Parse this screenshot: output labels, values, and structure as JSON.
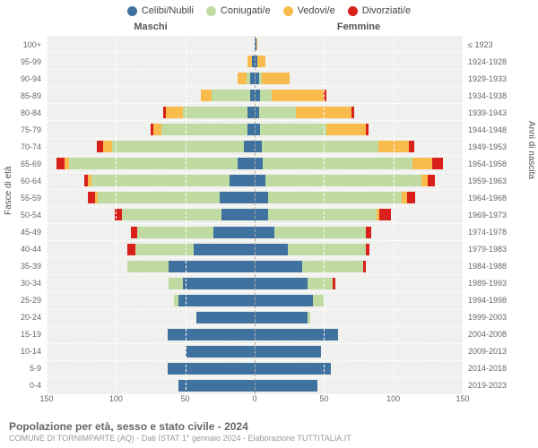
{
  "chart": {
    "type": "population-pyramid",
    "background_color": "#f0f0ee",
    "grid_color": "#ffffff",
    "center_line_color": "#aaaaaa",
    "legend": [
      {
        "label": "Celibi/Nubili",
        "color": "#3f729e"
      },
      {
        "label": "Coniugati/e",
        "color": "#c0dba2"
      },
      {
        "label": "Vedovi/e",
        "color": "#f9bc4c"
      },
      {
        "label": "Divorziati/e",
        "color": "#d9201a"
      }
    ],
    "gender_left_label": "Maschi",
    "gender_right_label": "Femmine",
    "y_title_left": "Fasce di età",
    "y_title_right": "Anni di nascita",
    "x_ticks": [
      -150,
      -100,
      -50,
      0,
      50,
      100,
      150
    ],
    "x_max": 150,
    "age_groups": [
      "100+",
      "95-99",
      "90-94",
      "85-89",
      "80-84",
      "75-79",
      "70-74",
      "65-69",
      "60-64",
      "55-59",
      "50-54",
      "45-49",
      "40-44",
      "35-39",
      "30-34",
      "25-29",
      "20-24",
      "15-19",
      "10-14",
      "5-9",
      "0-4"
    ],
    "birth_years": [
      "≤ 1923",
      "1924-1928",
      "1929-1933",
      "1934-1938",
      "1939-1943",
      "1944-1948",
      "1949-1953",
      "1954-1958",
      "1959-1963",
      "1964-1968",
      "1969-1973",
      "1974-1978",
      "1979-1983",
      "1984-1988",
      "1989-1993",
      "1994-1998",
      "1999-2003",
      "2004-2008",
      "2009-2013",
      "2014-2018",
      "2019-2023"
    ],
    "males": [
      {
        "cel": 0,
        "con": 0,
        "ved": 0,
        "div": 0
      },
      {
        "cel": 2,
        "con": 0,
        "ved": 3,
        "div": 0
      },
      {
        "cel": 3,
        "con": 3,
        "ved": 6,
        "div": 0
      },
      {
        "cel": 3,
        "con": 28,
        "ved": 8,
        "div": 0
      },
      {
        "cel": 5,
        "con": 47,
        "ved": 12,
        "div": 2
      },
      {
        "cel": 5,
        "con": 62,
        "ved": 6,
        "div": 2
      },
      {
        "cel": 8,
        "con": 95,
        "ved": 6,
        "div": 5
      },
      {
        "cel": 12,
        "con": 122,
        "ved": 3,
        "div": 6
      },
      {
        "cel": 18,
        "con": 100,
        "ved": 2,
        "div": 3
      },
      {
        "cel": 25,
        "con": 88,
        "ved": 2,
        "div": 5
      },
      {
        "cel": 24,
        "con": 72,
        "ved": 0,
        "div": 5
      },
      {
        "cel": 30,
        "con": 55,
        "ved": 0,
        "div": 4
      },
      {
        "cel": 44,
        "con": 42,
        "ved": 0,
        "div": 6
      },
      {
        "cel": 62,
        "con": 30,
        "ved": 0,
        "div": 0
      },
      {
        "cel": 52,
        "con": 10,
        "ved": 0,
        "div": 0
      },
      {
        "cel": 55,
        "con": 3,
        "ved": 0,
        "div": 0
      },
      {
        "cel": 42,
        "con": 0,
        "ved": 0,
        "div": 0
      },
      {
        "cel": 63,
        "con": 0,
        "ved": 0,
        "div": 0
      },
      {
        "cel": 50,
        "con": 0,
        "ved": 0,
        "div": 0
      },
      {
        "cel": 63,
        "con": 0,
        "ved": 0,
        "div": 0
      },
      {
        "cel": 55,
        "con": 0,
        "ved": 0,
        "div": 0
      }
    ],
    "females": [
      {
        "cel": 1,
        "con": 0,
        "ved": 1,
        "div": 0
      },
      {
        "cel": 2,
        "con": 0,
        "ved": 6,
        "div": 0
      },
      {
        "cel": 3,
        "con": 2,
        "ved": 20,
        "div": 0
      },
      {
        "cel": 4,
        "con": 8,
        "ved": 38,
        "div": 2
      },
      {
        "cel": 3,
        "con": 27,
        "ved": 40,
        "div": 2
      },
      {
        "cel": 4,
        "con": 48,
        "ved": 28,
        "div": 2
      },
      {
        "cel": 5,
        "con": 84,
        "ved": 22,
        "div": 4
      },
      {
        "cel": 6,
        "con": 108,
        "ved": 14,
        "div": 8
      },
      {
        "cel": 8,
        "con": 112,
        "ved": 5,
        "div": 5
      },
      {
        "cel": 10,
        "con": 96,
        "ved": 4,
        "div": 6
      },
      {
        "cel": 10,
        "con": 78,
        "ved": 2,
        "div": 8
      },
      {
        "cel": 14,
        "con": 66,
        "ved": 0,
        "div": 4
      },
      {
        "cel": 24,
        "con": 56,
        "ved": 0,
        "div": 3
      },
      {
        "cel": 34,
        "con": 44,
        "ved": 0,
        "div": 2
      },
      {
        "cel": 38,
        "con": 18,
        "ved": 0,
        "div": 2
      },
      {
        "cel": 42,
        "con": 8,
        "ved": 0,
        "div": 0
      },
      {
        "cel": 38,
        "con": 2,
        "ved": 0,
        "div": 0
      },
      {
        "cel": 60,
        "con": 0,
        "ved": 0,
        "div": 0
      },
      {
        "cel": 48,
        "con": 0,
        "ved": 0,
        "div": 0
      },
      {
        "cel": 55,
        "con": 0,
        "ved": 0,
        "div": 0
      },
      {
        "cel": 45,
        "con": 0,
        "ved": 0,
        "div": 0
      }
    ],
    "footer_title": "Popolazione per età, sesso e stato civile - 2024",
    "footer_sub": "COMUNE DI TORNIMPARTE (AQ) - Dati ISTAT 1° gennaio 2024 - Elaborazione TUTTITALIA.IT"
  }
}
